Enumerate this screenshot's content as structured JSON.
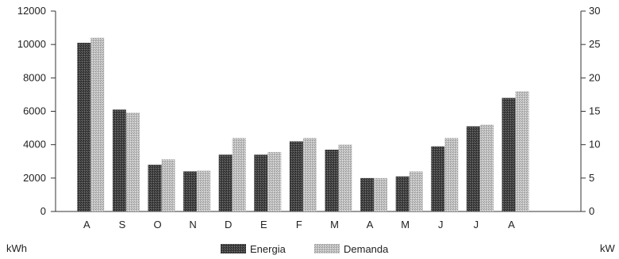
{
  "chart_data": {
    "type": "bar",
    "categories": [
      "A",
      "S",
      "O",
      "N",
      "D",
      "E",
      "F",
      "M",
      "A",
      "M",
      "J",
      "J",
      "A"
    ],
    "series": [
      {
        "name": "Energia",
        "axis": "left",
        "unit": "kWh",
        "values": [
          10100,
          6100,
          2800,
          2400,
          3400,
          3400,
          4200,
          3700,
          2000,
          2100,
          3900,
          5100,
          6800
        ]
      },
      {
        "name": "Demanda",
        "axis": "right",
        "unit": "kW",
        "values": [
          26,
          14.8,
          7.8,
          6.1,
          11,
          8.9,
          11,
          10,
          5,
          6,
          11,
          13,
          18
        ]
      }
    ],
    "y_left": {
      "label": "kWh",
      "ticks": [
        "0",
        "2000",
        "4000",
        "6000",
        "8000",
        "10000",
        "12000"
      ],
      "ylim": [
        0,
        12000
      ]
    },
    "y_right": {
      "label": "kW",
      "ticks": [
        "0",
        "5",
        "10",
        "15",
        "20",
        "25",
        "30"
      ],
      "ylim": [
        0,
        30
      ]
    },
    "legend": {
      "placement": "bottom-center"
    },
    "colors": {
      "Energia": "#3a3a3a",
      "Demanda": "#b8b8b8"
    },
    "grid": false
  }
}
